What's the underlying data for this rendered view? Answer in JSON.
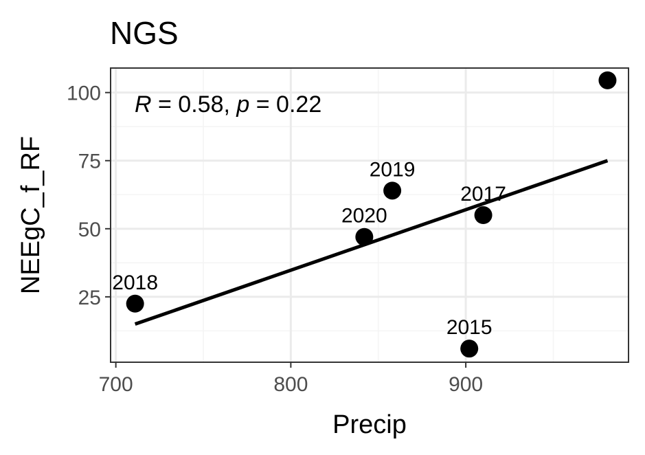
{
  "chart_data": {
    "type": "scatter",
    "title": "NGS",
    "xlabel": "Precip",
    "ylabel": "NEEgC_f_RF",
    "xlim": [
      697,
      993
    ],
    "ylim": [
      1,
      109
    ],
    "x_ticks": [
      700,
      800,
      900
    ],
    "y_ticks": [
      25,
      50,
      75,
      100
    ],
    "x_tick_labels": [
      "700",
      "800",
      "900"
    ],
    "y_tick_labels": [
      "25",
      "50",
      "75",
      "100"
    ],
    "grid": true,
    "points": [
      {
        "x": 711,
        "y": 22.5,
        "label": "2018"
      },
      {
        "x": 842,
        "y": 47,
        "label": "2020"
      },
      {
        "x": 858,
        "y": 64,
        "label": "2019"
      },
      {
        "x": 902,
        "y": 6,
        "label": "2015"
      },
      {
        "x": 910,
        "y": 55,
        "label": "2017"
      },
      {
        "x": 981,
        "y": 104.5,
        "label": ""
      }
    ],
    "fit_line": {
      "x": [
        711,
        981
      ],
      "y": [
        15,
        75
      ]
    },
    "annotation": {
      "r_symbol": "R",
      "r_text": " = 0.58, ",
      "p_symbol": "p",
      "p_text": " = 0.22"
    },
    "colors": {
      "points": "#000000",
      "line": "#000000",
      "grid_major": "#ebebeb",
      "grid_minor": "#f4f4f4",
      "panel_border": "#333333"
    }
  }
}
